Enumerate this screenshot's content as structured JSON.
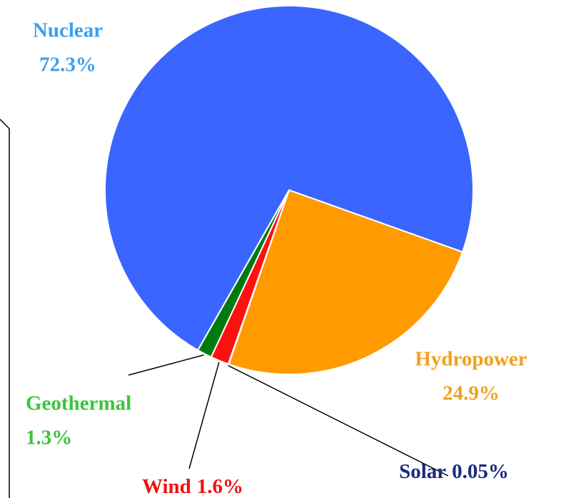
{
  "chart_data": {
    "type": "pie",
    "categories": [
      "Hydropower",
      "Solar",
      "Wind",
      "Geothermal",
      "Nuclear"
    ],
    "values": [
      24.9,
      0.05,
      1.6,
      1.3,
      72.3
    ],
    "value_labels": [
      "24.9%",
      "0.05%",
      "1.6%",
      "1.3%",
      "72.3%"
    ],
    "colors": [
      "#ff9a00",
      "#1a2a80",
      "#ff1010",
      "#007a10",
      "#3a66ff"
    ],
    "label_colors": [
      "#f0a020",
      "#1a2a80",
      "#ee1111",
      "#3cc43c",
      "#3aa0f0"
    ]
  }
}
